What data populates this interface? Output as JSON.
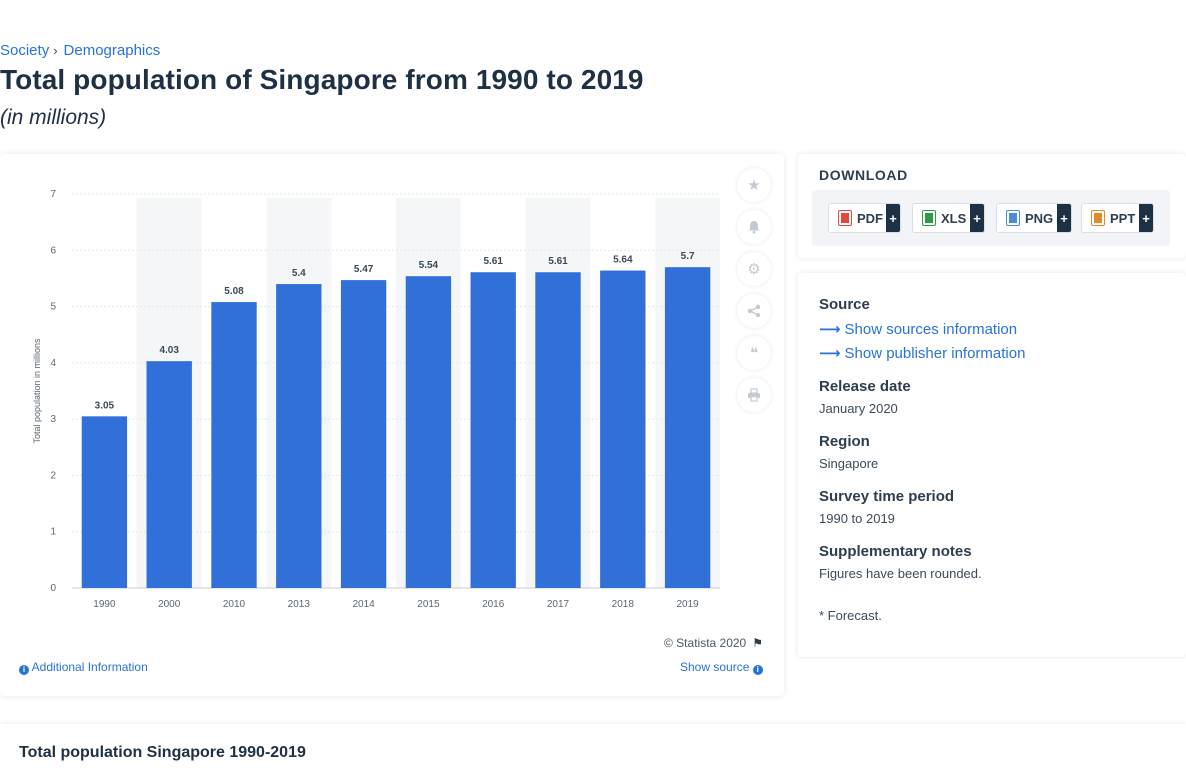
{
  "breadcrumb": {
    "items": [
      "Society",
      "Demographics"
    ],
    "separator": "›"
  },
  "header": {
    "title": "Total population of Singapore from 1990 to 2019",
    "subtitle": "(in millions)"
  },
  "chart_data": {
    "type": "bar",
    "categories": [
      "1990",
      "2000",
      "2010",
      "2013",
      "2014",
      "2015",
      "2016",
      "2017",
      "2018",
      "2019"
    ],
    "values": [
      3.05,
      4.03,
      5.08,
      5.4,
      5.47,
      5.54,
      5.61,
      5.61,
      5.64,
      5.7
    ],
    "data_labels": [
      "3.05",
      "4.03",
      "5.08",
      "5.4",
      "5.47",
      "5.54",
      "5.61",
      "5.61",
      "5.64",
      "5.7"
    ],
    "ylabel": "Total population in millions",
    "ylim": [
      0,
      7
    ],
    "yticks": [
      "0",
      "1",
      "2",
      "3",
      "4",
      "5",
      "6",
      "7"
    ],
    "grid": true,
    "bar_color": "#3070d8",
    "alt_band_color": "#f5f6f8"
  },
  "chart_footer": {
    "copyright": "© Statista 2020",
    "additional_info": "Additional Information",
    "show_source": "Show source"
  },
  "toolbar": {
    "icons": [
      "star-icon",
      "bell-icon",
      "gear-icon",
      "share-icon",
      "quote-icon",
      "print-icon"
    ]
  },
  "download": {
    "title": "DOWNLOAD",
    "buttons": [
      {
        "label": "PDF",
        "plus": "+",
        "color": "#e04a3f"
      },
      {
        "label": "XLS",
        "plus": "+",
        "color": "#2f9b48"
      },
      {
        "label": "PNG",
        "plus": "+",
        "color": "#4a8cd8"
      },
      {
        "label": "PPT",
        "plus": "+",
        "color": "#e28a2c"
      }
    ]
  },
  "meta": {
    "source_label": "Source",
    "show_sources": "Show sources information",
    "show_publisher": "Show publisher information",
    "release_label": "Release date",
    "release_value": "January 2020",
    "region_label": "Region",
    "region_value": "Singapore",
    "period_label": "Survey time period",
    "period_value": "1990 to 2019",
    "notes_label": "Supplementary notes",
    "notes_value": "Figures have been rounded.",
    "forecast_note": "* Forecast."
  },
  "bottom": {
    "title": "Total population Singapore 1990-2019"
  }
}
